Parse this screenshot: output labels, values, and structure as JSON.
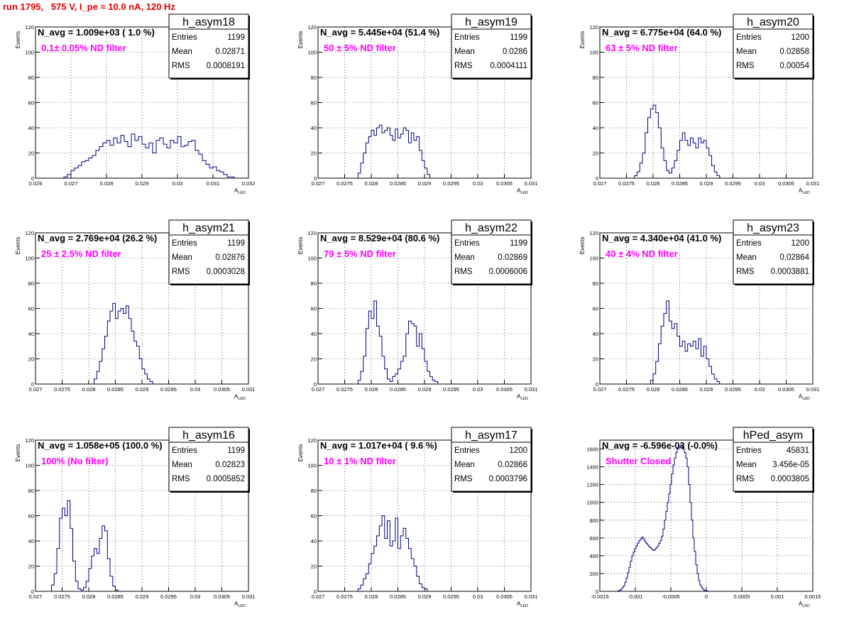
{
  "title": "run 1795,   575 V, I_pe ≈ 10.0 nA, 120 Hz",
  "chart_data": [
    {
      "type": "histogram",
      "hist_name": "h_asym18",
      "nlabel": "N_avg = 1.009e+03 ( 1.0 %)",
      "filter_label": "0.1± 0.05% ND filter",
      "stats": {
        "Entries": "1199",
        "Mean": "0.02871",
        "RMS": "0.0008191"
      },
      "xlabel": "A_LED",
      "ylabel": "Events",
      "xlim": [
        0.026,
        0.032
      ],
      "ylim": [
        0,
        120
      ],
      "xticks": [
        "0.026",
        "0.027",
        "0.028",
        "0.029",
        "0.03",
        "0.031",
        "0.032"
      ],
      "yticks": [
        "0",
        "20",
        "40",
        "60",
        "80",
        "100",
        "120"
      ],
      "bins_x0": 0.0268,
      "bin_width": 0.0001,
      "values": [
        1,
        3,
        6,
        8,
        10,
        13,
        14,
        16,
        18,
        22,
        25,
        28,
        30,
        26,
        32,
        28,
        34,
        29,
        25,
        35,
        30,
        33,
        27,
        24,
        28,
        20,
        30,
        32,
        27,
        24,
        30,
        28,
        33,
        25,
        26,
        29,
        30,
        22,
        19,
        14,
        11,
        8,
        9,
        6,
        5,
        3,
        1,
        1
      ]
    },
    {
      "type": "histogram",
      "hist_name": "h_asym19",
      "nlabel": "N_avg = 5.445e+04 (51.4 %)",
      "filter_label": "50 ± 5% ND filter",
      "stats": {
        "Entries": "1199",
        "Mean": "0.0286",
        "RMS": "0.0004111"
      },
      "xlabel": "A_LED",
      "ylabel": "Events",
      "xlim": [
        0.027,
        0.031
      ],
      "ylim": [
        0,
        120
      ],
      "xticks": [
        "0.027",
        "0.0275",
        "0.028",
        "0.0285",
        "0.029",
        "0.0295",
        "0.03",
        "0.0305",
        "0.031"
      ],
      "yticks": [
        "0",
        "20",
        "40",
        "60",
        "80",
        "100",
        "120"
      ],
      "bins_x0": 0.02775,
      "bin_width": 5e-05,
      "values": [
        4,
        12,
        20,
        28,
        33,
        38,
        34,
        40,
        42,
        36,
        38,
        40,
        34,
        30,
        39,
        32,
        35,
        40,
        38,
        28,
        36,
        30,
        33,
        22,
        14,
        8,
        3
      ]
    },
    {
      "type": "histogram",
      "hist_name": "h_asym20",
      "nlabel": "N_avg = 6.775e+04 (64.0 %)",
      "filter_label": "63 ± 5% ND filter",
      "stats": {
        "Entries": "1200",
        "Mean": "0.02858",
        "RMS": "0.00054"
      },
      "xlabel": "A_LED",
      "ylabel": "Events",
      "xlim": [
        0.027,
        0.031
      ],
      "ylim": [
        0,
        120
      ],
      "xticks": [
        "0.027",
        "0.0275",
        "0.028",
        "0.0285",
        "0.029",
        "0.0295",
        "0.03",
        "0.0305",
        "0.031"
      ],
      "yticks": [
        "0",
        "20",
        "40",
        "60",
        "80",
        "100",
        "120"
      ],
      "bins_x0": 0.02765,
      "bin_width": 5e-05,
      "values": [
        2,
        5,
        12,
        20,
        36,
        48,
        55,
        58,
        52,
        40,
        24,
        14,
        6,
        4,
        8,
        14,
        22,
        30,
        36,
        30,
        26,
        32,
        28,
        24,
        32,
        28,
        30,
        24,
        18,
        10,
        5,
        2
      ]
    },
    {
      "type": "histogram",
      "hist_name": "h_asym21",
      "nlabel": "N_avg = 2.769e+04 (26.2 %)",
      "filter_label": "25 ± 2.5% ND filter",
      "stats": {
        "Entries": "1199",
        "Mean": "0.02876",
        "RMS": "0.0003028"
      },
      "xlabel": "A_LED",
      "ylabel": "Events",
      "xlim": [
        0.027,
        0.031
      ],
      "ylim": [
        0,
        120
      ],
      "xticks": [
        "0.027",
        "0.0275",
        "0.028",
        "0.0285",
        "0.029",
        "0.0295",
        "0.03",
        "0.0305",
        "0.031"
      ],
      "yticks": [
        "0",
        "20",
        "40",
        "60",
        "80",
        "100",
        "120"
      ],
      "bins_x0": 0.0281,
      "bin_width": 5e-05,
      "values": [
        4,
        10,
        18,
        28,
        38,
        50,
        58,
        64,
        52,
        58,
        60,
        56,
        62,
        52,
        42,
        34,
        30,
        20,
        12,
        8,
        4,
        2
      ]
    },
    {
      "type": "histogram",
      "hist_name": "h_asym22",
      "nlabel": "N_avg = 8.529e+04 (80.6 %)",
      "filter_label": "79 ± 5% ND filter",
      "stats": {
        "Entries": "1199",
        "Mean": "0.02869",
        "RMS": "0.0006006"
      },
      "xlabel": "A_LED",
      "ylabel": "Events",
      "xlim": [
        0.027,
        0.031
      ],
      "ylim": [
        0,
        120
      ],
      "xticks": [
        "0.027",
        "0.0275",
        "0.028",
        "0.0285",
        "0.029",
        "0.0295",
        "0.03",
        "0.0305",
        "0.031"
      ],
      "yticks": [
        "0",
        "20",
        "40",
        "60",
        "80",
        "100",
        "120"
      ],
      "bins_x0": 0.02775,
      "bin_width": 5e-05,
      "values": [
        3,
        10,
        22,
        44,
        58,
        52,
        66,
        46,
        38,
        22,
        12,
        4,
        2,
        6,
        8,
        12,
        18,
        22,
        40,
        50,
        48,
        46,
        30,
        40,
        28,
        18,
        10,
        6,
        3,
        2
      ]
    },
    {
      "type": "histogram",
      "hist_name": "h_asym23",
      "nlabel": "N_avg = 4.340e+04 (41.0 %)",
      "filter_label": "40 ± 4% ND filter",
      "stats": {
        "Entries": "1200",
        "Mean": "0.02864",
        "RMS": "0.0003881"
      },
      "xlabel": "A_LED",
      "ylabel": "Events",
      "xlim": [
        0.027,
        0.031
      ],
      "ylim": [
        0,
        120
      ],
      "xticks": [
        "0.027",
        "0.0275",
        "0.028",
        "0.0285",
        "0.029",
        "0.0295",
        "0.03",
        "0.0305",
        "0.031"
      ],
      "yticks": [
        "0",
        "20",
        "40",
        "60",
        "80",
        "100",
        "120"
      ],
      "bins_x0": 0.02795,
      "bin_width": 5e-05,
      "values": [
        3,
        8,
        18,
        32,
        46,
        56,
        66,
        50,
        44,
        48,
        38,
        30,
        34,
        26,
        32,
        30,
        34,
        28,
        36,
        22,
        30,
        20,
        14,
        8,
        4,
        2
      ]
    },
    {
      "type": "histogram",
      "hist_name": "h_asym16",
      "nlabel": "N_avg = 1.058e+05 (100.0 %)",
      "filter_label": "100% (No filter)",
      "stats": {
        "Entries": "1199",
        "Mean": "0.02823",
        "RMS": "0.0005852"
      },
      "xlabel": "A_LED",
      "ylabel": "Events",
      "xlim": [
        0.027,
        0.031
      ],
      "ylim": [
        0,
        120
      ],
      "xticks": [
        "0.027",
        "0.0275",
        "0.028",
        "0.0285",
        "0.029",
        "0.0295",
        "0.03",
        "0.0305",
        "0.031"
      ],
      "yticks": [
        "0",
        "20",
        "40",
        "60",
        "80",
        "100",
        "120"
      ],
      "bins_x0": 0.0273,
      "bin_width": 5e-05,
      "values": [
        5,
        14,
        34,
        58,
        66,
        60,
        72,
        50,
        24,
        8,
        2,
        1,
        3,
        8,
        18,
        28,
        34,
        30,
        42,
        52,
        48,
        26,
        12,
        4,
        1
      ]
    },
    {
      "type": "histogram",
      "hist_name": "h_asym17",
      "nlabel": "N_avg = 1.017e+04 ( 9.6 %)",
      "filter_label": "10 ± 1% ND filter",
      "stats": {
        "Entries": "1200",
        "Mean": "0.02866",
        "RMS": "0.0003796"
      },
      "xlabel": "A_LED",
      "ylabel": "Events",
      "xlim": [
        0.027,
        0.031
      ],
      "ylim": [
        0,
        120
      ],
      "xticks": [
        "0.027",
        "0.0275",
        "0.028",
        "0.0285",
        "0.029",
        "0.0295",
        "0.03",
        "0.0305",
        "0.031"
      ],
      "yticks": [
        "0",
        "20",
        "40",
        "60",
        "80",
        "100",
        "120"
      ],
      "bins_x0": 0.02775,
      "bin_width": 5e-05,
      "values": [
        2,
        5,
        10,
        14,
        22,
        30,
        36,
        44,
        52,
        60,
        42,
        56,
        36,
        40,
        58,
        34,
        44,
        50,
        42,
        34,
        26,
        20,
        12,
        6,
        3,
        2
      ]
    },
    {
      "type": "histogram",
      "hist_name": "hPed_asym",
      "nlabel": "N_avg = -6.596e-03 (-0.0%)",
      "filter_label": "Shutter Closed",
      "stats": {
        "Entries": "45831",
        "Mean": "3.456e-05",
        "RMS": "0.0003805"
      },
      "xlabel": "A_LED",
      "ylabel": "",
      "xlim": [
        -0.0015,
        0.0015
      ],
      "ylim": [
        0,
        1700
      ],
      "xticks": [
        "-0.0015",
        "-0.001",
        "-0.0005",
        "0",
        "0.0005",
        "0.001",
        "0.0015"
      ],
      "yticks": [
        "0",
        "200",
        "400",
        "600",
        "800",
        "1000",
        "1200",
        "1400",
        "1600"
      ],
      "bins_x0": -0.00125,
      "bin_width": 2e-05,
      "values": [
        5,
        10,
        20,
        40,
        60,
        100,
        150,
        210,
        270,
        340,
        400,
        440,
        480,
        510,
        540,
        570,
        590,
        610,
        590,
        560,
        540,
        520,
        500,
        490,
        470,
        460,
        470,
        490,
        510,
        540,
        570,
        620,
        700,
        800,
        900,
        1000,
        1100,
        1200,
        1320,
        1420,
        1500,
        1560,
        1600,
        1620,
        1640,
        1630,
        1600,
        1560,
        1500,
        1400,
        1200,
        1000,
        800,
        600,
        450,
        300,
        200,
        120,
        70,
        40,
        20,
        10,
        5,
        2
      ]
    }
  ]
}
